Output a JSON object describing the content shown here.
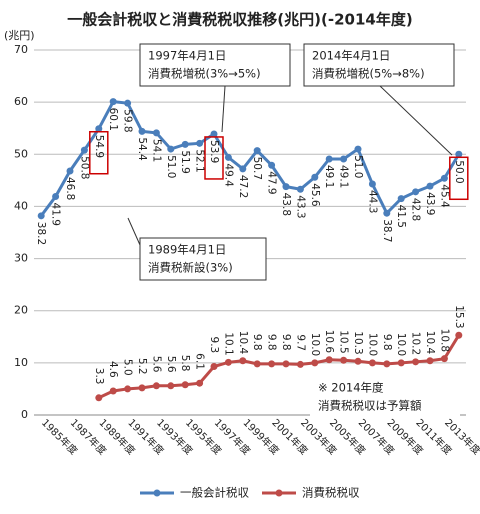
{
  "chart_data": {
    "type": "line",
    "title": "一般会計税収と消費税税収推移(兆円)(-2014年度)",
    "y_label": "(兆円)",
    "categories": [
      "1985年度",
      null,
      "1987年度",
      null,
      "1989年度",
      null,
      "1991年度",
      null,
      "1993年度",
      null,
      "1995年度",
      null,
      "1997年度",
      null,
      "1999年度",
      null,
      "2001年度",
      null,
      "2003年度",
      null,
      "2005年度",
      null,
      "2007年度",
      null,
      "2009年度",
      null,
      "2011年度",
      null,
      "2013年度",
      null
    ],
    "series": [
      {
        "name": "一般会計税収",
        "color": "#4a7ebb",
        "values": [
          38.2,
          41.9,
          46.8,
          50.8,
          54.9,
          60.1,
          59.8,
          54.4,
          54.1,
          51.0,
          51.9,
          52.1,
          53.9,
          49.4,
          47.2,
          50.7,
          47.9,
          43.8,
          43.3,
          45.6,
          49.1,
          49.1,
          51.0,
          44.3,
          38.7,
          41.5,
          42.8,
          43.9,
          45.4,
          50.0
        ],
        "value_labels": [
          "38.2",
          "41.9",
          "46.8",
          "50.8",
          "54.9",
          "60.1",
          "59.8",
          "54.4",
          "54.1",
          "51.0",
          "51.9",
          "52.1",
          "53.9",
          "49.4",
          "47.2",
          "50.7",
          "47.9",
          "43.8",
          "43.3",
          "45.6",
          "49.1",
          "49.1",
          "51.0",
          "44.3",
          "38.7",
          "41.5",
          "42.8",
          "43.9",
          "45.4",
          "50.0"
        ],
        "highlighted": [
          4,
          12,
          29
        ]
      },
      {
        "name": "消費税税収",
        "color": "#be4b48",
        "values": [
          null,
          null,
          null,
          null,
          3.3,
          4.6,
          5.0,
          5.2,
          5.6,
          5.6,
          5.8,
          6.1,
          9.3,
          10.1,
          10.4,
          9.8,
          9.8,
          9.8,
          9.7,
          10.0,
          10.6,
          10.5,
          10.3,
          10.0,
          9.8,
          10.0,
          10.2,
          10.4,
          10.8,
          15.3
        ],
        "value_labels": [
          null,
          null,
          null,
          null,
          "3.3",
          "4.6",
          "5.0",
          "5.2",
          "5.6",
          "5.6",
          "5.8",
          "6.1",
          "9.3",
          "10.1",
          "10.4",
          "9.8",
          "9.8",
          "9.8",
          "9.7",
          "10.0",
          "10.6",
          "10.5",
          "10.3",
          "10.0",
          "9.8",
          "10.0",
          "10.2",
          "10.4",
          "10.8",
          "15.3"
        ]
      }
    ],
    "ylim": [
      0,
      70
    ],
    "yticks": [
      0,
      10,
      20,
      30,
      40,
      50,
      60,
      70
    ],
    "grid": true,
    "legend": "bottom",
    "annotations": [
      {
        "lines": [
          "1997年4月1日",
          "消費税増税(3%→5%)"
        ]
      },
      {
        "lines": [
          "2014年4月1日",
          "消費税増税(5%→8%)"
        ]
      },
      {
        "lines": [
          "1989年4月1日",
          "消費税新設(3%)"
        ]
      },
      {
        "lines": [
          "※ 2014年度",
          "消費税税収は予算額"
        ]
      }
    ]
  }
}
